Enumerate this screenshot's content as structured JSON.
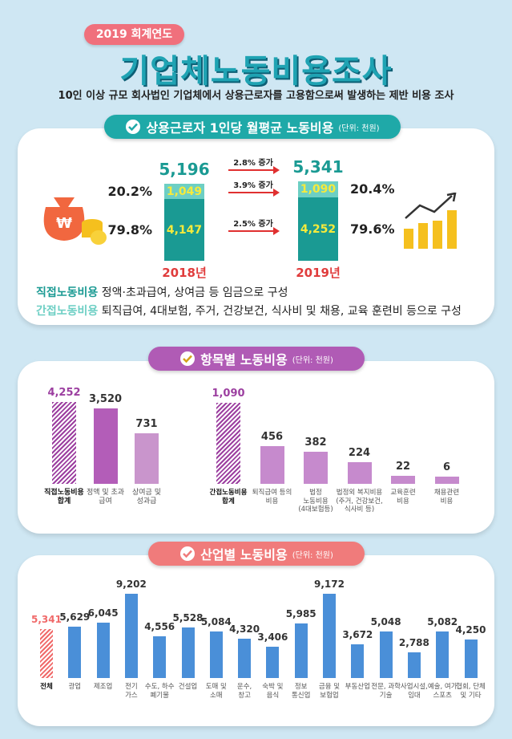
{
  "header": {
    "badge": "2019 회계연도",
    "title": "기업체노동비용조사",
    "subtitle": "10인 이상 규모 회사법인 기업체에서 상용근로자를 고용함으로써 발생하는 제반 비용 조사"
  },
  "chart_data": [
    {
      "type": "stacked_bar",
      "title": "상용근로자 1인당 월평균 노동비용",
      "unit": "(단위: 천원)",
      "categories": [
        "2018년",
        "2019년"
      ],
      "totals": [
        5196,
        5341
      ],
      "total_labels": [
        "5,196",
        "5,341"
      ],
      "total_growth": "2.8% 증가",
      "series": [
        {
          "name": "직접노동비용",
          "description": "정액·초과급여, 상여금 등 임금으로 구성",
          "color": "#1a9a93",
          "values": [
            4147,
            4252
          ],
          "value_labels": [
            "4,147",
            "4,252"
          ],
          "share_labels": [
            "79.8%",
            "79.6%"
          ],
          "growth": "2.5% 증가"
        },
        {
          "name": "간접노동비용",
          "description": "퇴직급여, 4대보험, 주거, 건강보건, 식사비 및 채용, 교육 훈련비 등으로 구성",
          "color": "#6dcfc4",
          "values": [
            1049,
            1090
          ],
          "value_labels": [
            "1,049",
            "1,090"
          ],
          "share_labels": [
            "20.2%",
            "20.4%"
          ],
          "growth": "3.9% 증가"
        }
      ]
    },
    {
      "type": "bar",
      "title": "항목별 노동비용",
      "unit": "(단위: 천원)",
      "categories": [
        "직접노동비용\n합계",
        "정액 및 초과\n급여",
        "상여금 및\n성과급"
      ],
      "values": [
        4252,
        3520,
        731
      ],
      "value_labels": [
        "4,252",
        "3,520",
        "731"
      ],
      "colors": [
        "#9c3fa0",
        "#b35db8",
        "#c995cc"
      ],
      "hatched": 0
    },
    {
      "type": "bar",
      "categories": [
        "간접노동비용\n합계",
        "퇴직급여 등의\n비용",
        "법정\n노동비용\n(4대보험등)",
        "법정외 복지비용\n(주거, 건강보건,\n식사비 등)",
        "교육훈련\n비용",
        "채용관련\n비용"
      ],
      "values": [
        1090,
        456,
        382,
        224,
        22,
        6
      ],
      "value_labels": [
        "1,090",
        "456",
        "382",
        "224",
        "22",
        "6"
      ],
      "colors": [
        "#9c3fa0",
        "#c68acd",
        "#c68acd",
        "#c68acd",
        "#c68acd",
        "#c68acd"
      ],
      "hatched": 0
    },
    {
      "type": "bar",
      "title": "산업별 노동비용",
      "unit": "(단위: 천원)",
      "categories": [
        "전체",
        "광업",
        "제조업",
        "전기\n가스",
        "수도, 하수\n폐기물",
        "건설업",
        "도매 및\n소매",
        "운수,\n창고",
        "숙박 및\n음식",
        "정보\n통신업",
        "금융 및\n보험업",
        "부동산업",
        "전문, 과학\n기술",
        "사업시설,\n임대",
        "예술, 여가\n스포츠",
        "협회, 단체\n및 기타"
      ],
      "values": [
        5341,
        5629,
        6045,
        9202,
        4556,
        5528,
        5084,
        4320,
        3406,
        5985,
        9172,
        3672,
        5048,
        2788,
        5082,
        4250
      ],
      "value_labels": [
        "5,341",
        "5,629",
        "6,045",
        "9,202",
        "4,556",
        "5,528",
        "5,084",
        "4,320",
        "3,406",
        "5,985",
        "9,172",
        "3,672",
        "5,048",
        "2,788",
        "5,082",
        "4,250"
      ],
      "colors": [
        "#f06a6a",
        "#4a8fd8",
        "#4a8fd8",
        "#4a8fd8",
        "#4a8fd8",
        "#4a8fd8",
        "#4a8fd8",
        "#4a8fd8",
        "#4a8fd8",
        "#4a8fd8",
        "#4a8fd8",
        "#4a8fd8",
        "#4a8fd8",
        "#4a8fd8",
        "#4a8fd8",
        "#4a8fd8"
      ],
      "hatched": 0
    }
  ]
}
